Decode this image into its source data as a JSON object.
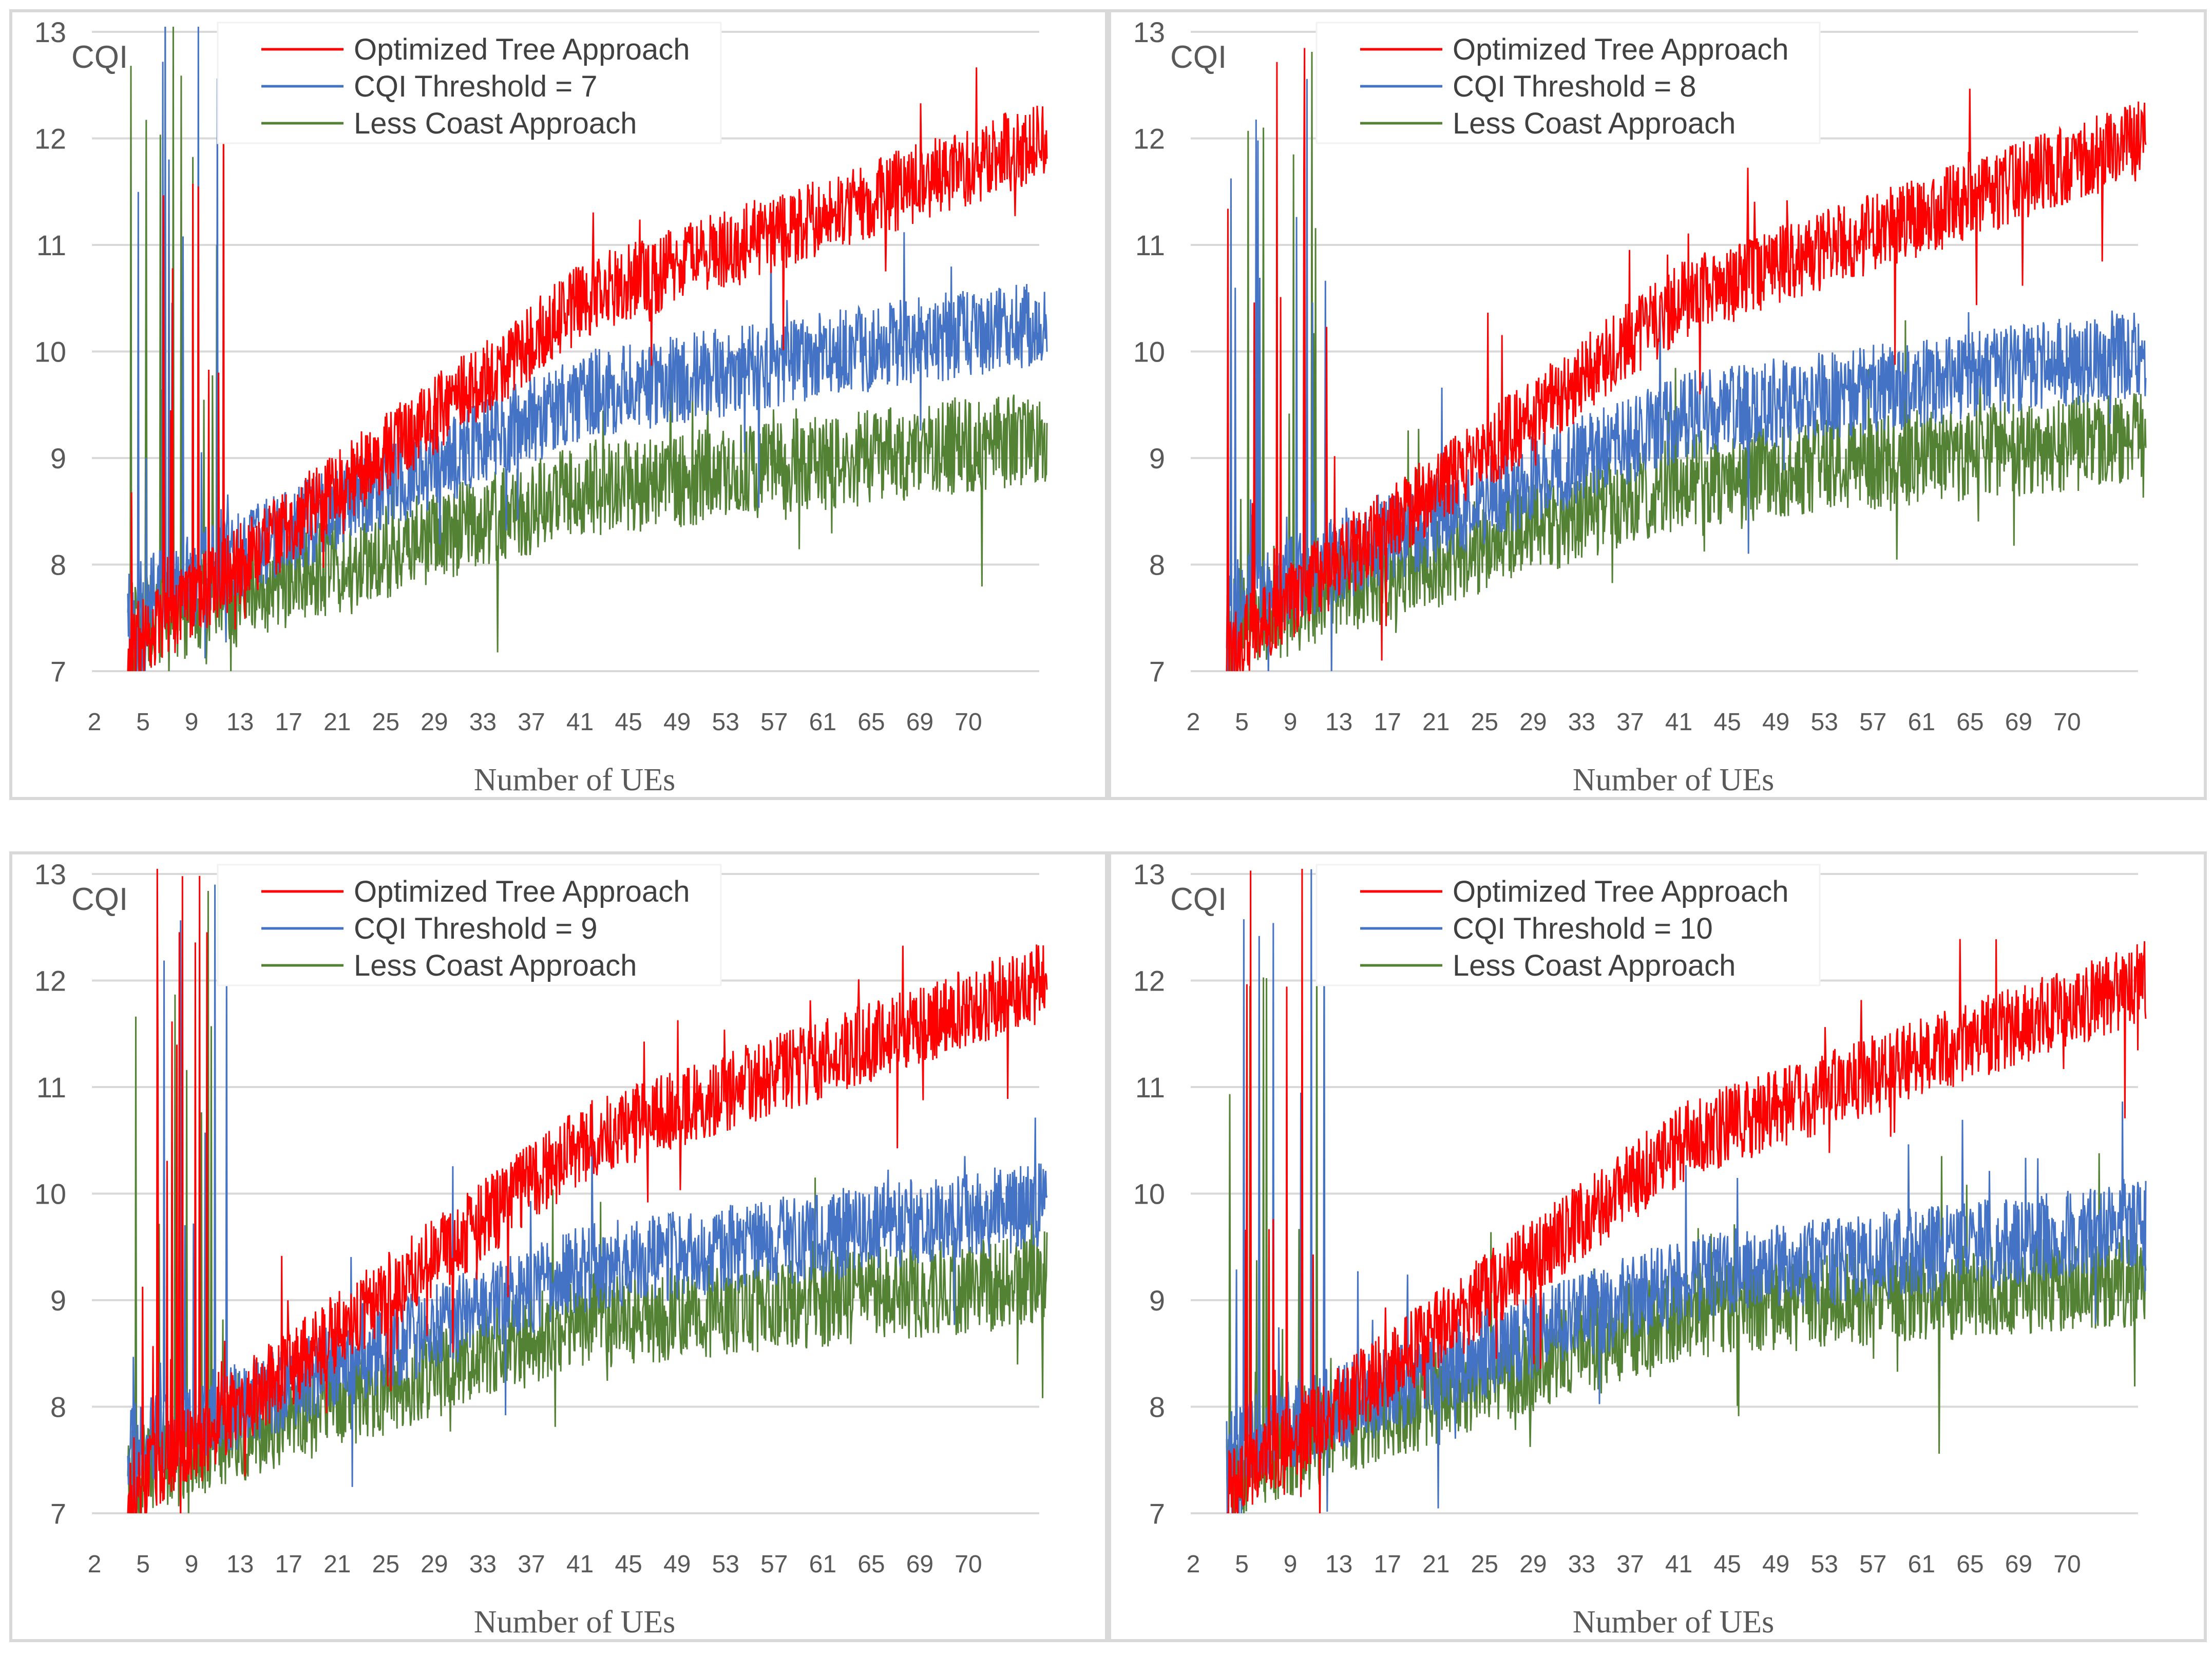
{
  "chart_data": [
    {
      "type": "line",
      "title": "",
      "ylabel": "CQI",
      "xlabel": "Number of UEs",
      "ylim": [
        7,
        13
      ],
      "yticks": [
        "7",
        "8",
        "9",
        "10",
        "11",
        "12",
        "13"
      ],
      "xticks": [
        "2",
        "5",
        "9",
        "13",
        "17",
        "21",
        "25",
        "29",
        "33",
        "37",
        "41",
        "45",
        "49",
        "53",
        "57",
        "61",
        "65",
        "69",
        "70"
      ],
      "grid": true,
      "legend_position": "top-left",
      "series": [
        {
          "name": "Optimized Tree Approach",
          "color": "#ff0000",
          "start": 7.2,
          "mid": 10.5,
          "end": 12.0
        },
        {
          "name": "CQI Threshold = 7",
          "color": "#4472c4",
          "start": 7.6,
          "mid": 9.6,
          "end": 10.3
        },
        {
          "name": "Less Coast Approach",
          "color": "#548235",
          "start": 7.4,
          "mid": 8.7,
          "end": 9.2
        }
      ]
    },
    {
      "type": "line",
      "title": "",
      "ylabel": "CQI",
      "xlabel": "Number of UEs",
      "ylim": [
        7,
        13
      ],
      "yticks": [
        "7",
        "8",
        "9",
        "10",
        "11",
        "12",
        "13"
      ],
      "xticks": [
        "2",
        "5",
        "9",
        "13",
        "17",
        "21",
        "25",
        "29",
        "33",
        "37",
        "41",
        "45",
        "49",
        "53",
        "57",
        "61",
        "65",
        "69",
        "70"
      ],
      "grid": true,
      "legend_position": "top-left",
      "series": [
        {
          "name": "Optimized Tree Approach",
          "color": "#ff0000",
          "start": 7.2,
          "mid": 10.5,
          "end": 12.0
        },
        {
          "name": "CQI Threshold = 8",
          "color": "#4472c4",
          "start": 7.6,
          "mid": 9.4,
          "end": 10.0
        },
        {
          "name": "Less Coast Approach",
          "color": "#548235",
          "start": 7.4,
          "mid": 8.8,
          "end": 9.2
        }
      ]
    },
    {
      "type": "line",
      "title": "",
      "ylabel": "CQI",
      "xlabel": "Number of UEs",
      "ylim": [
        7,
        13
      ],
      "yticks": [
        "7",
        "8",
        "9",
        "10",
        "11",
        "12",
        "13"
      ],
      "xticks": [
        "2",
        "5",
        "9",
        "13",
        "17",
        "21",
        "25",
        "29",
        "33",
        "37",
        "41",
        "45",
        "49",
        "53",
        "57",
        "61",
        "65",
        "69",
        "70"
      ],
      "grid": true,
      "legend_position": "top-left",
      "series": [
        {
          "name": "Optimized Tree Approach",
          "color": "#ff0000",
          "start": 7.2,
          "mid": 10.5,
          "end": 12.0
        },
        {
          "name": "CQI Threshold = 9",
          "color": "#4472c4",
          "start": 7.6,
          "mid": 9.3,
          "end": 9.9
        },
        {
          "name": "Less Coast Approach",
          "color": "#548235",
          "start": 7.4,
          "mid": 8.8,
          "end": 9.2
        }
      ]
    },
    {
      "type": "line",
      "title": "",
      "ylabel": "CQI",
      "xlabel": "Number of UEs",
      "ylim": [
        7,
        13
      ],
      "yticks": [
        "7",
        "8",
        "9",
        "10",
        "11",
        "12",
        "13"
      ],
      "xticks": [
        "2",
        "5",
        "9",
        "13",
        "17",
        "21",
        "25",
        "29",
        "33",
        "37",
        "41",
        "45",
        "49",
        "53",
        "57",
        "61",
        "65",
        "69",
        "70"
      ],
      "grid": true,
      "legend_position": "top-left",
      "series": [
        {
          "name": "Optimized Tree Approach",
          "color": "#ff0000",
          "start": 7.2,
          "mid": 10.5,
          "end": 12.0
        },
        {
          "name": "CQI Threshold = 10",
          "color": "#4472c4",
          "start": 7.6,
          "mid": 9.2,
          "end": 9.7
        },
        {
          "name": "Less Coast Approach",
          "color": "#548235",
          "start": 7.4,
          "mid": 8.9,
          "end": 9.2
        }
      ]
    }
  ]
}
